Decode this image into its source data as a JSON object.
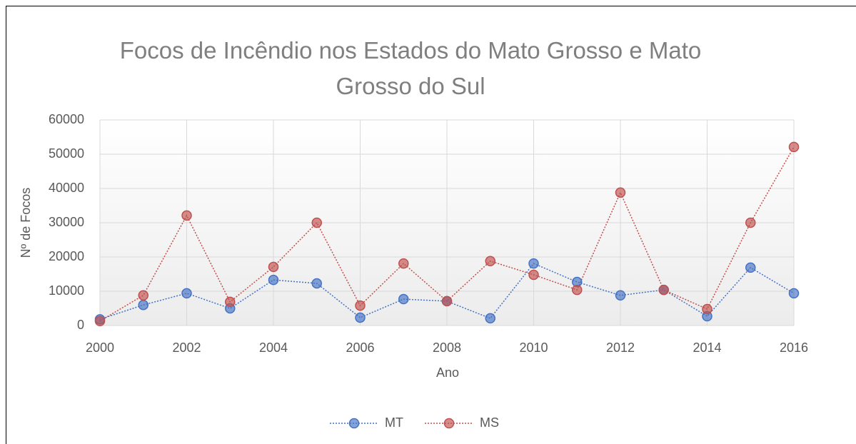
{
  "chart_data": {
    "type": "line",
    "title": "Focos de Incêndio nos Estados do Mato Grosso e Mato Grosso do Sul",
    "x_label": "Ano",
    "y_label": "Nº de Focos",
    "x": [
      2000,
      2001,
      2002,
      2003,
      2004,
      2005,
      2006,
      2007,
      2008,
      2009,
      2010,
      2011,
      2012,
      2013,
      2014,
      2015,
      2016
    ],
    "series": [
      {
        "name": "MT",
        "color": "#4472c4",
        "values": [
          1800,
          6000,
          9400,
          5000,
          13300,
          12300,
          2300,
          7700,
          7100,
          2100,
          18100,
          12700,
          8800,
          10400,
          2700,
          16900,
          9400
        ]
      },
      {
        "name": "MS",
        "color": "#c0504d",
        "values": [
          1300,
          8800,
          32100,
          6900,
          17100,
          30000,
          5800,
          18100,
          7100,
          18800,
          14800,
          10400,
          38800,
          10400,
          4800,
          30000,
          52100
        ]
      }
    ],
    "xlim": [
      2000,
      2016
    ],
    "xticks": [
      2000,
      2002,
      2004,
      2006,
      2008,
      2010,
      2012,
      2014,
      2016
    ],
    "ylim": [
      0,
      60000
    ],
    "yticks": [
      0,
      10000,
      20000,
      30000,
      40000,
      50000,
      60000
    ],
    "grid": true,
    "legend": "bottom"
  }
}
